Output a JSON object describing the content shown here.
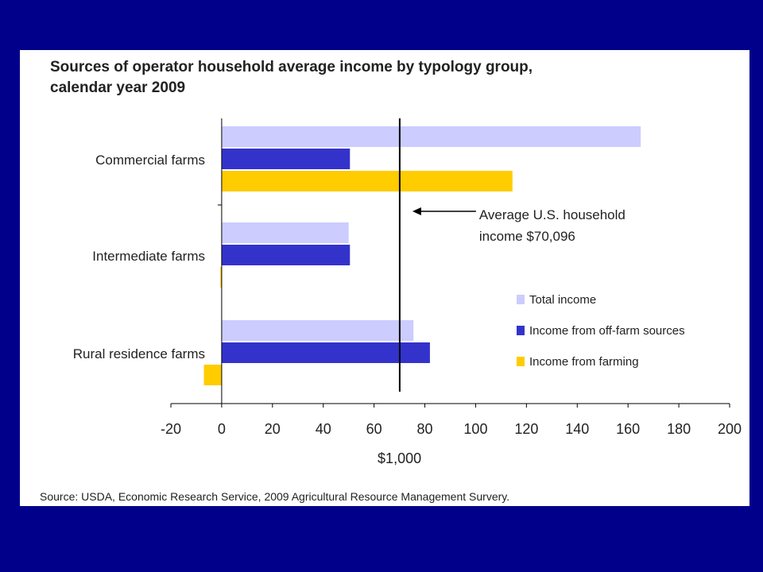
{
  "chart_data": {
    "type": "bar",
    "orientation": "horizontal",
    "title_lines": [
      "Sources of operator household average income by typology group,",
      "calendar year 2009"
    ],
    "categories": [
      "Commercial farms",
      "Intermediate farms",
      "Rural residence farms"
    ],
    "series": [
      {
        "name": "Total income",
        "color": "#ccccff",
        "values": [
          165,
          50,
          75.5
        ]
      },
      {
        "name": "Income from off-farm sources",
        "color": "#3333cc",
        "values": [
          50.5,
          50.5,
          82
        ]
      },
      {
        "name": "Income from farming",
        "color": "#ffcc00",
        "values": [
          114.5,
          -0.5,
          -7
        ]
      }
    ],
    "xlim": [
      -20,
      200
    ],
    "xticks": [
      -20,
      0,
      20,
      40,
      60,
      80,
      100,
      120,
      140,
      160,
      180,
      200
    ],
    "xlabel": "$1,000",
    "grid": false,
    "legend_position": "right",
    "reference_line": {
      "value": 70.096,
      "label_lines": [
        "Average U.S. household",
        "income $70,096"
      ]
    },
    "source": "Source: USDA, Economic Research Service, 2009 Agricultural Resource Management Survery."
  }
}
